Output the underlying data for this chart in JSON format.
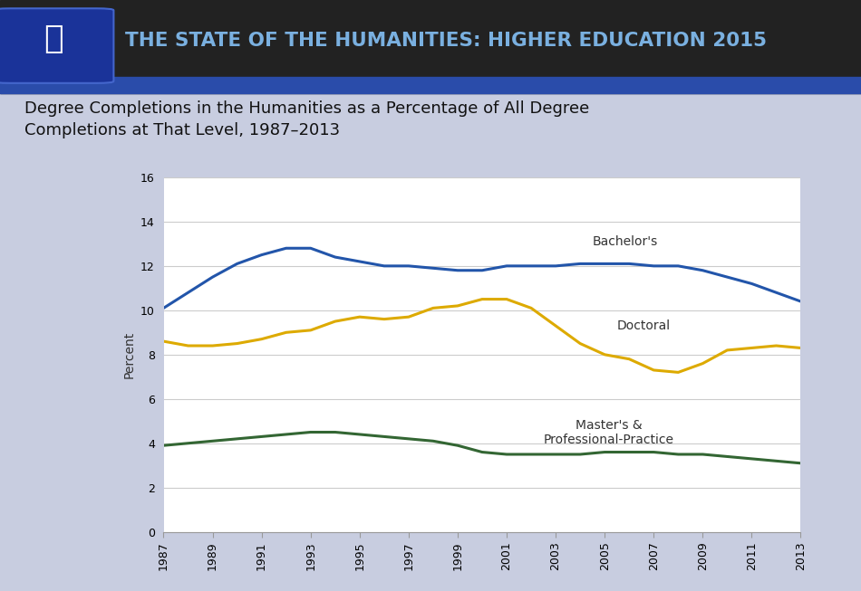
{
  "title": "Degree Completions in the Humanities as a Percentage of All Degree\nCompletions at That Level, 1987–2013",
  "header_title": "THE STATE OF THE HUMANITIES: HIGHER EDUCATION 2015",
  "ylabel": "Percent",
  "years": [
    1987,
    1988,
    1989,
    1990,
    1991,
    1992,
    1993,
    1994,
    1995,
    1996,
    1997,
    1998,
    1999,
    2000,
    2001,
    2002,
    2003,
    2004,
    2005,
    2006,
    2007,
    2008,
    2009,
    2010,
    2011,
    2012,
    2013
  ],
  "bachelors": [
    10.1,
    10.8,
    11.5,
    12.1,
    12.5,
    12.8,
    12.8,
    12.4,
    12.2,
    12.0,
    12.0,
    11.9,
    11.8,
    11.8,
    12.0,
    12.0,
    12.0,
    12.1,
    12.1,
    12.1,
    12.0,
    12.0,
    11.8,
    11.5,
    11.2,
    10.8,
    10.4
  ],
  "doctoral": [
    8.6,
    8.4,
    8.4,
    8.5,
    8.7,
    9.0,
    9.1,
    9.5,
    9.7,
    9.6,
    9.7,
    10.1,
    10.2,
    10.5,
    10.5,
    10.1,
    9.3,
    8.5,
    8.0,
    7.8,
    7.3,
    7.2,
    7.6,
    8.2,
    8.3,
    8.4,
    8.3
  ],
  "masters": [
    3.9,
    4.0,
    4.1,
    4.2,
    4.3,
    4.4,
    4.5,
    4.5,
    4.4,
    4.3,
    4.2,
    4.1,
    3.9,
    3.6,
    3.5,
    3.5,
    3.5,
    3.5,
    3.6,
    3.6,
    3.6,
    3.5,
    3.5,
    3.4,
    3.3,
    3.2,
    3.1
  ],
  "bachelors_color": "#2255aa",
  "doctoral_color": "#ddaa00",
  "masters_color": "#336633",
  "background_color": "#c8cde0",
  "header_bg_dark": "#2a2a2a",
  "header_bg_blue": "#2a4caa",
  "plot_bg": "#ffffff",
  "ylim": [
    0,
    16
  ],
  "yticks": [
    0,
    2,
    4,
    6,
    8,
    10,
    12,
    14,
    16
  ],
  "xtick_years": [
    1987,
    1989,
    1991,
    1993,
    1995,
    1997,
    1999,
    2001,
    2003,
    2005,
    2007,
    2009,
    2011,
    2013
  ],
  "line_width": 2.2,
  "bachelors_label": "Bachelor's",
  "doctoral_label": "Doctoral",
  "masters_label": "Master's &\nProfessional-Practice"
}
